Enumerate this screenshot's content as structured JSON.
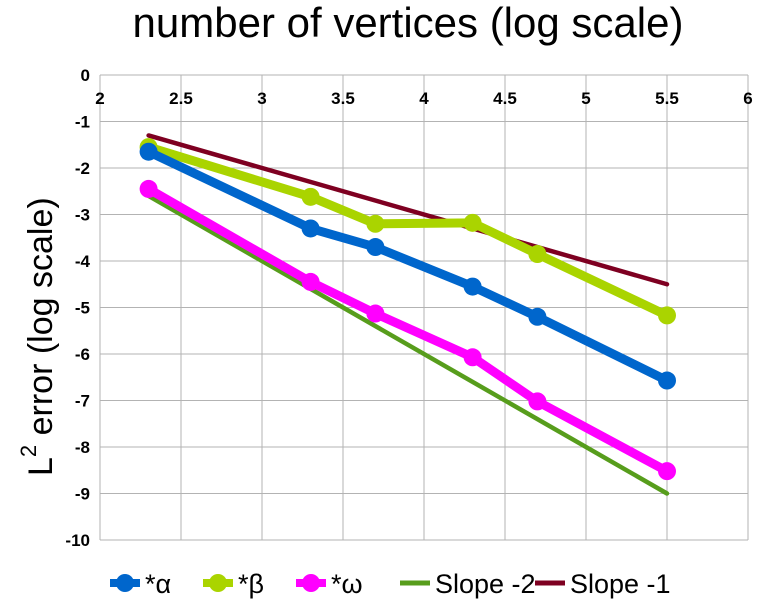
{
  "chart_data": {
    "type": "line",
    "title": "number of vertices (log scale)",
    "xlabel": "",
    "ylabel_main": "L",
    "ylabel_sup": "2",
    "ylabel_rest": " error (log scale)",
    "xlim": [
      2,
      6
    ],
    "ylim": [
      -10,
      0
    ],
    "x_ticks": [
      "2",
      "2.5",
      "3",
      "3.5",
      "4",
      "4.5",
      "5",
      "5.5",
      "6"
    ],
    "y_ticks": [
      "0",
      "-1",
      "-2",
      "-3",
      "-4",
      "-5",
      "-6",
      "-7",
      "-8",
      "-9",
      "-10"
    ],
    "grid": true,
    "legend_position": "bottom",
    "series": [
      {
        "name": "*α",
        "color": "#0066cc",
        "marker": true,
        "x": [
          2.3,
          3.3,
          3.7,
          4.3,
          4.7,
          5.5
        ],
        "y": [
          -1.65,
          -3.3,
          -3.7,
          -4.55,
          -5.2,
          -6.57
        ]
      },
      {
        "name": "*β",
        "color": "#aad400",
        "marker": true,
        "x": [
          2.3,
          3.3,
          3.7,
          4.3,
          4.7,
          5.5
        ],
        "y": [
          -1.55,
          -2.62,
          -3.2,
          -3.18,
          -3.85,
          -5.17
        ]
      },
      {
        "name": "*ω",
        "color": "#ff00ff",
        "marker": true,
        "x": [
          2.3,
          3.3,
          3.7,
          4.3,
          4.7,
          5.5
        ],
        "y": [
          -2.45,
          -4.45,
          -5.13,
          -6.07,
          -7.02,
          -8.52
        ]
      },
      {
        "name": "Slope -2",
        "color": "#579d1c",
        "marker": false,
        "x": [
          2.3,
          5.5
        ],
        "y": [
          -2.6,
          -9.0
        ]
      },
      {
        "name": "Slope -1",
        "color": "#7e0021",
        "marker": false,
        "x": [
          2.3,
          5.5
        ],
        "y": [
          -1.3,
          -4.5
        ]
      }
    ]
  }
}
